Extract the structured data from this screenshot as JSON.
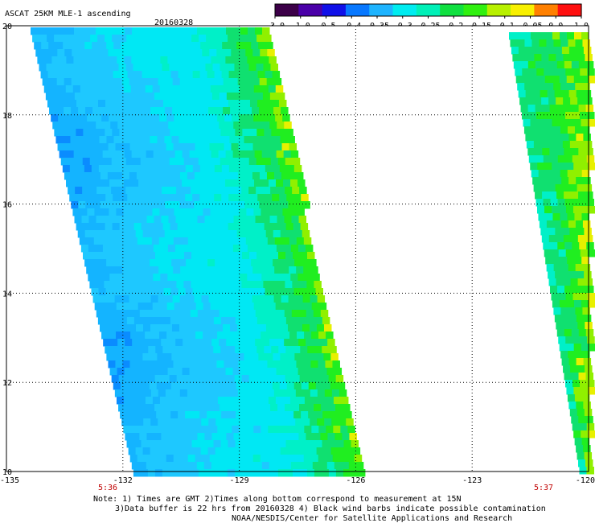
{
  "title": {
    "product": "ASCAT 25KM MLE-1 ascending",
    "date": "20160328"
  },
  "colorbar": {
    "ticks": [
      "-3.0",
      "-1.0",
      "-0.5",
      "-0.4",
      "-0.35",
      "-0.3",
      "-0.25",
      "-0.2",
      "-0.15",
      "-0.1",
      "-0.05",
      "0.0",
      "1.0"
    ],
    "colors": [
      "#3c0048",
      "#4a00a8",
      "#1010e8",
      "#0878ff",
      "#1eb4ff",
      "#00ecf0",
      "#00f0b8",
      "#10e040",
      "#30f010",
      "#b8f000",
      "#f8f000",
      "#ff8000",
      "#ff1010"
    ]
  },
  "map": {
    "lat_ticks": [
      "20",
      "18",
      "16",
      "14",
      "12",
      "10"
    ],
    "lon_ticks": [
      "-135",
      "-132",
      "-129",
      "-126",
      "-123",
      "-120"
    ],
    "lat_range": [
      10,
      20
    ],
    "lon_range": [
      -135,
      -120
    ],
    "grid": true,
    "swath_times": [
      "5:36",
      "5:37"
    ]
  },
  "notes": [
    "Note: 1) Times are GMT 2)Times along bottom correspond to measurement at 15N",
    "3)Data buffer is 22 hrs from 20160328 4) Black wind barbs indicate possible contamination",
    "NOAA/NESDIS/Center for Satellite Applications and Research"
  ]
}
